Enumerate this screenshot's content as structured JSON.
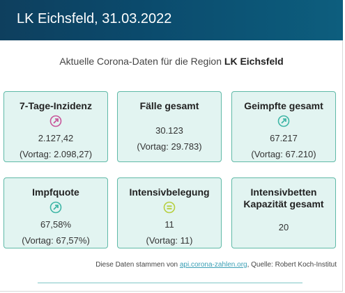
{
  "header": {
    "title": "LK Eichsfeld, 31.03.2022"
  },
  "subtitle": {
    "prefix": "Aktuelle Corona-Daten für die Region ",
    "region": "LK Eichsfeld"
  },
  "cards": [
    {
      "title": "7-Tage-Inzidenz",
      "trend_icon": "arrow-up-right-icon",
      "value": "2.127,42",
      "previous": "(Vortag: 2.098,27)",
      "icon_color": "#c8559a"
    },
    {
      "title": "Fälle gesamt",
      "value": "30.123",
      "previous": "(Vortag: 29.783)"
    },
    {
      "title": "Geimpfte gesamt",
      "trend_icon": "arrow-up-right-icon",
      "value": "67.217",
      "previous": "(Vortag: 67.210)",
      "icon_color": "#3fb6a6"
    },
    {
      "title": "Impfquote",
      "trend_icon": "arrow-up-right-icon",
      "value": "67,58%",
      "previous": "(Vortag: 67,57%)",
      "icon_color": "#3fb6a6"
    },
    {
      "title": "Intensivbelegung",
      "trend_icon": "equals-icon",
      "value": "11",
      "previous": "(Vortag: 11)",
      "icon_color": "#b7cf3f"
    },
    {
      "title_line1": "Intensivbetten",
      "title_line2": "Kapazität gesamt",
      "value": "20"
    }
  ],
  "source": {
    "prefix": "Diese Daten stammen von ",
    "link": "api.corona-zahlen.org",
    "suffix": ", Quelle: Robert Koch-Institut"
  },
  "colors": {
    "header": "#0b4a6c",
    "card_bg": "#e2f4f1",
    "card_border": "#5fb9a7"
  }
}
